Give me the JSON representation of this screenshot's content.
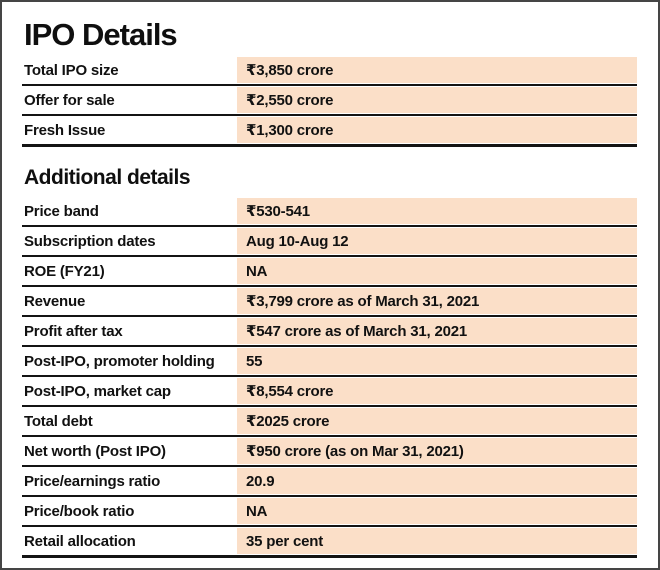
{
  "chart_data": {
    "type": "table",
    "title": "IPO Details",
    "currency_symbol": "₹",
    "sections": [
      {
        "heading": "IPO Details",
        "rows": [
          {
            "label": "Total IPO size",
            "value": "₹3,850 crore"
          },
          {
            "label": "Offer for sale",
            "value": "₹2,550 crore"
          },
          {
            "label": "Fresh Issue",
            "value": "₹1,300 crore"
          }
        ]
      },
      {
        "heading": "Additional details",
        "rows": [
          {
            "label": "Price band",
            "value": "₹530-541"
          },
          {
            "label": "Subscription dates",
            "value": "Aug 10-Aug 12"
          },
          {
            "label": "ROE (FY21)",
            "value": "NA"
          },
          {
            "label": "Revenue",
            "value": "₹3,799 crore as of March 31, 2021"
          },
          {
            "label": "Profit after tax",
            "value": "₹547 crore as of March 31, 2021"
          },
          {
            "label": "Post-IPO, promoter holding",
            "value": "55"
          },
          {
            "label": "Post-IPO, market cap",
            "value": "₹8,554 crore"
          },
          {
            "label": "Total debt",
            "value": "₹2025 crore"
          },
          {
            "label": "Net worth (Post IPO)",
            "value": "₹950 crore (as on Mar 31, 2021)"
          },
          {
            "label": "Price/earnings ratio",
            "value": "20.9"
          },
          {
            "label": "Price/book ratio",
            "value": "NA"
          },
          {
            "label": "Retail allocation",
            "value": "35 per cent"
          }
        ]
      }
    ],
    "layout": {
      "grid": "off",
      "row_separator": "black-rule",
      "value_column_highlighted": true
    }
  },
  "colors": {
    "value_cell_bg": "#fbdfc8",
    "rule": "#141414",
    "frame_border": "#454545",
    "text": "#111111",
    "background": "#ffffff"
  }
}
